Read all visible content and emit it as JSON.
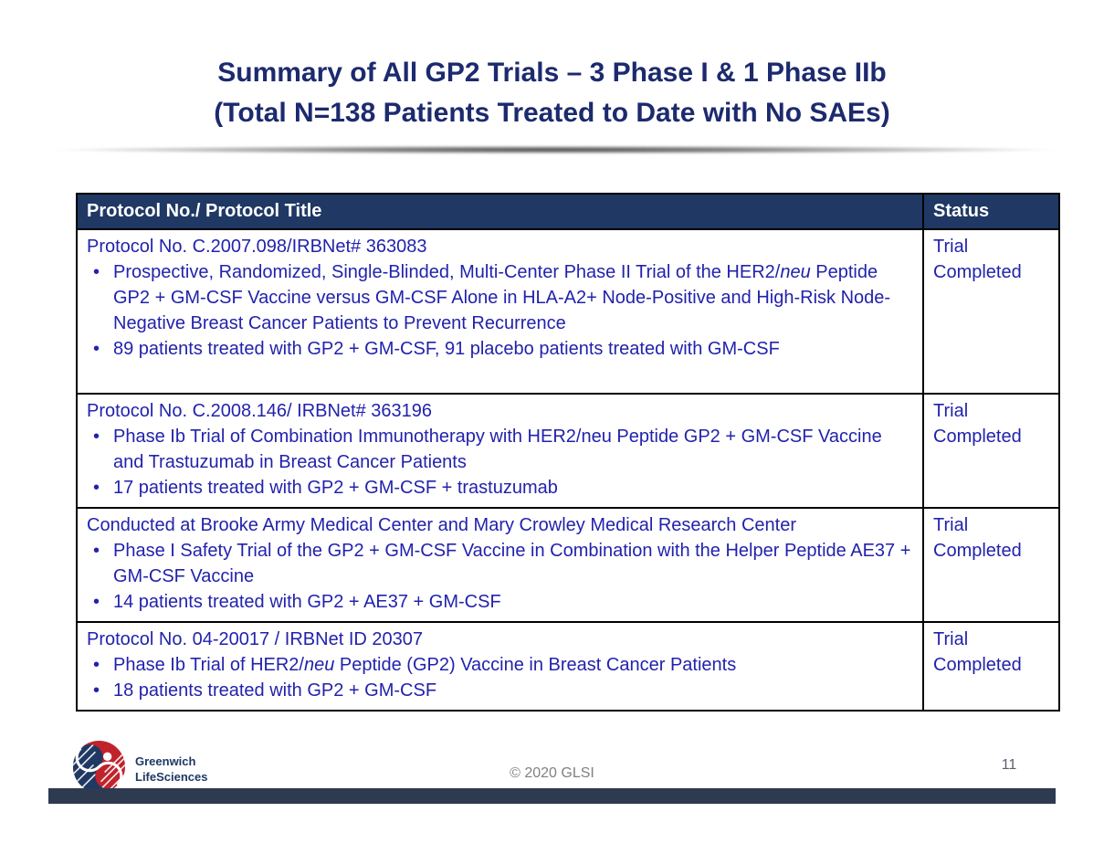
{
  "title": {
    "line1": "Summary of All GP2 Trials – 3 Phase I & 1 Phase IIb",
    "line2": "(Total N=138 Patients Treated to Date with No SAEs)"
  },
  "table": {
    "header": {
      "protocol_col": "Protocol No./ Protocol Title",
      "status_col": "Status"
    },
    "rows": [
      {
        "status": "Trial Completed",
        "lines": [
          {
            "bullet": false,
            "segments": [
              {
                "t": "Protocol No. C.2007.098/IRBNet# 363083"
              }
            ]
          },
          {
            "bullet": true,
            "segments": [
              {
                "t": "Prospective, Randomized, Single-Blinded, Multi-Center Phase II Trial of the HER2/"
              },
              {
                "t": "neu",
                "i": true
              },
              {
                "t": " Peptide GP2 + GM-CSF Vaccine versus GM-CSF Alone in HLA-A2+ Node-Positive and High-Risk Node-Negative Breast Cancer Patients to Prevent Recurrence"
              }
            ]
          },
          {
            "bullet": true,
            "segments": [
              {
                "t": "89 patients treated with GP2 + GM-CSF, 91 placebo patients treated with GM-CSF"
              }
            ]
          }
        ]
      },
      {
        "status": "Trial Completed",
        "lines": [
          {
            "bullet": false,
            "segments": [
              {
                "t": "Protocol No. C.2008.146/ IRBNet# 363196"
              }
            ]
          },
          {
            "bullet": true,
            "segments": [
              {
                "t": "Phase Ib Trial of Combination Immunotherapy with HER2/neu Peptide GP2 + GM-CSF Vaccine and Trastuzumab in Breast Cancer Patients"
              }
            ]
          },
          {
            "bullet": true,
            "segments": [
              {
                "t": "17 patients treated with GP2 + GM-CSF + trastuzumab"
              }
            ]
          }
        ]
      },
      {
        "status": "Trial Completed",
        "lines": [
          {
            "bullet": false,
            "segments": [
              {
                "t": "Conducted at Brooke Army Medical Center and Mary Crowley Medical Research Center"
              }
            ]
          },
          {
            "bullet": true,
            "segments": [
              {
                "t": "Phase I Safety Trial of the GP2 + GM-CSF Vaccine in Combination with the Helper Peptide AE37 + GM-CSF Vaccine"
              }
            ]
          },
          {
            "bullet": true,
            "segments": [
              {
                "t": "14 patients treated with GP2 + AE37 + GM-CSF"
              }
            ]
          }
        ]
      },
      {
        "status": "Trial Completed",
        "lines": [
          {
            "bullet": false,
            "segments": [
              {
                "t": "Protocol No. 04-20017 / IRBNet ID 20307"
              }
            ]
          },
          {
            "bullet": true,
            "segments": [
              {
                "t": "Phase Ib Trial of HER2/"
              },
              {
                "t": "neu",
                "i": true
              },
              {
                "t": " Peptide (GP2) Vaccine in Breast Cancer Patients"
              }
            ]
          },
          {
            "bullet": true,
            "segments": [
              {
                "t": "18 patients treated with GP2 + GM-CSF"
              }
            ]
          }
        ]
      }
    ]
  },
  "footer": {
    "company_line1": "Greenwich",
    "company_line2": "LifeSciences",
    "copyright": "© 2020 GLSI",
    "page_number": "11"
  },
  "colors": {
    "title_text": "#1C2A6E",
    "table_header_bg": "#1F3864",
    "table_header_text": "#FFFFFF",
    "body_text_blue": "#2222AD",
    "border_black": "#000000",
    "bottom_bar": "#2D3A50",
    "logo_red": "#C0232C",
    "logo_navy": "#1F3864",
    "copyright_gray": "#808080"
  }
}
